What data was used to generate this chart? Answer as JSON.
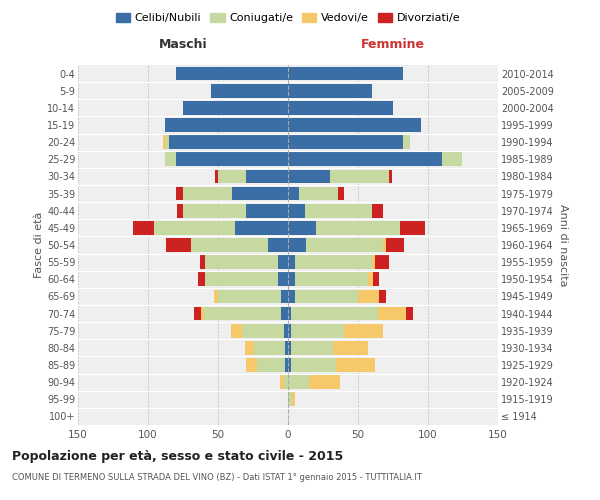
{
  "age_groups": [
    "100+",
    "95-99",
    "90-94",
    "85-89",
    "80-84",
    "75-79",
    "70-74",
    "65-69",
    "60-64",
    "55-59",
    "50-54",
    "45-49",
    "40-44",
    "35-39",
    "30-34",
    "25-29",
    "20-24",
    "15-19",
    "10-14",
    "5-9",
    "0-4"
  ],
  "birth_years": [
    "≤ 1914",
    "1915-1919",
    "1920-1924",
    "1925-1929",
    "1930-1934",
    "1935-1939",
    "1940-1944",
    "1945-1949",
    "1950-1954",
    "1955-1959",
    "1960-1964",
    "1965-1969",
    "1970-1974",
    "1975-1979",
    "1980-1984",
    "1985-1989",
    "1990-1994",
    "1995-1999",
    "2000-2004",
    "2005-2009",
    "2010-2014"
  ],
  "males": {
    "celibi": [
      0,
      0,
      0,
      2,
      2,
      3,
      5,
      5,
      7,
      7,
      14,
      38,
      30,
      40,
      30,
      80,
      85,
      88,
      75,
      55,
      80
    ],
    "coniugati": [
      0,
      0,
      3,
      20,
      22,
      30,
      55,
      45,
      52,
      52,
      55,
      58,
      45,
      35,
      20,
      8,
      2,
      0,
      0,
      0,
      0
    ],
    "vedovi": [
      0,
      0,
      3,
      8,
      7,
      8,
      2,
      3,
      0,
      0,
      0,
      0,
      0,
      0,
      0,
      0,
      2,
      0,
      0,
      0,
      0
    ],
    "divorziati": [
      0,
      0,
      0,
      0,
      0,
      0,
      5,
      0,
      5,
      4,
      18,
      15,
      4,
      5,
      2,
      0,
      0,
      0,
      0,
      0,
      0
    ]
  },
  "females": {
    "nubili": [
      0,
      0,
      0,
      2,
      2,
      2,
      2,
      5,
      5,
      5,
      13,
      20,
      12,
      8,
      30,
      110,
      82,
      95,
      75,
      60,
      82
    ],
    "coniugate": [
      0,
      3,
      15,
      32,
      30,
      38,
      62,
      45,
      52,
      55,
      55,
      60,
      48,
      28,
      42,
      14,
      5,
      0,
      0,
      0,
      0
    ],
    "vedove": [
      0,
      2,
      22,
      28,
      25,
      28,
      20,
      15,
      4,
      2,
      2,
      0,
      0,
      0,
      0,
      0,
      0,
      0,
      0,
      0,
      0
    ],
    "divorziate": [
      0,
      0,
      0,
      0,
      0,
      0,
      5,
      5,
      4,
      10,
      13,
      18,
      8,
      4,
      2,
      0,
      0,
      0,
      0,
      0,
      0
    ]
  },
  "colors": {
    "celibi": "#3a6ea5",
    "coniugati": "#c5d9a0",
    "vedovi": "#f5c96a",
    "divorziati": "#cc2222"
  },
  "title": "Popolazione per età, sesso e stato civile - 2015",
  "subtitle": "COMUNE DI TERMENO SULLA STRADA DEL VINO (BZ) - Dati ISTAT 1° gennaio 2015 - TUTTITALIA.IT",
  "label_maschi": "Maschi",
  "label_femmine": "Femmine",
  "ylabel_left": "Fasce di età",
  "ylabel_right": "Anni di nascita",
  "xlim": 150,
  "bg_color": "#efefef",
  "legend_labels": [
    "Celibi/Nubili",
    "Coniugati/e",
    "Vedovi/e",
    "Divorziati/e"
  ]
}
